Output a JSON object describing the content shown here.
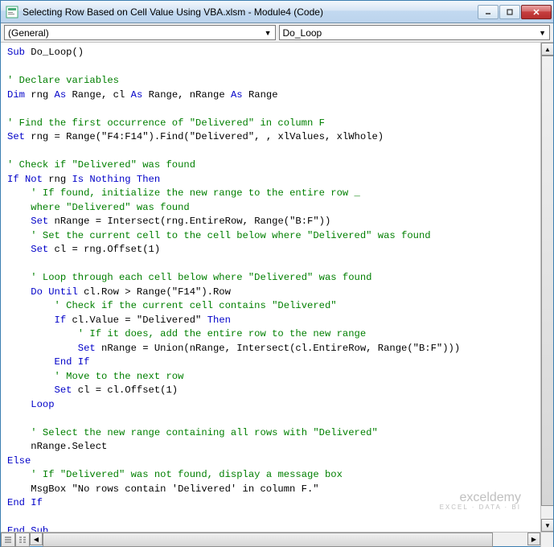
{
  "window": {
    "title": "Selecting Row Based on Cell Value Using VBA.xlsm - Module4 (Code)"
  },
  "dropdowns": {
    "left": "(General)",
    "right": "Do_Loop"
  },
  "code": {
    "tokens": [
      [
        {
          "t": "kw",
          "v": "Sub"
        },
        {
          "t": "",
          "v": " Do_Loop()"
        }
      ],
      [],
      [
        {
          "t": "cm",
          "v": "' Declare variables"
        }
      ],
      [
        {
          "t": "kw",
          "v": "Dim"
        },
        {
          "t": "",
          "v": " rng "
        },
        {
          "t": "kw",
          "v": "As"
        },
        {
          "t": "",
          "v": " Range, cl "
        },
        {
          "t": "kw",
          "v": "As"
        },
        {
          "t": "",
          "v": " Range, nRange "
        },
        {
          "t": "kw",
          "v": "As"
        },
        {
          "t": "",
          "v": " Range"
        }
      ],
      [],
      [
        {
          "t": "cm",
          "v": "' Find the first occurrence of \"Delivered\" in column F"
        }
      ],
      [
        {
          "t": "kw",
          "v": "Set"
        },
        {
          "t": "",
          "v": " rng = Range(\"F4:F14\").Find(\"Delivered\", , xlValues, xlWhole)"
        }
      ],
      [],
      [
        {
          "t": "cm",
          "v": "' Check if \"Delivered\" was found"
        }
      ],
      [
        {
          "t": "kw",
          "v": "If Not"
        },
        {
          "t": "",
          "v": " rng "
        },
        {
          "t": "kw",
          "v": "Is Nothing Then"
        }
      ],
      [
        {
          "t": "",
          "v": "    "
        },
        {
          "t": "cm",
          "v": "' If found, initialize the new range to the entire row _"
        }
      ],
      [
        {
          "t": "",
          "v": "    "
        },
        {
          "t": "cm",
          "v": "where \"Delivered\" was found"
        }
      ],
      [
        {
          "t": "",
          "v": "    "
        },
        {
          "t": "kw",
          "v": "Set"
        },
        {
          "t": "",
          "v": " nRange = Intersect(rng.EntireRow, Range(\"B:F\"))"
        }
      ],
      [
        {
          "t": "",
          "v": "    "
        },
        {
          "t": "cm",
          "v": "' Set the current cell to the cell below where \"Delivered\" was found"
        }
      ],
      [
        {
          "t": "",
          "v": "    "
        },
        {
          "t": "kw",
          "v": "Set"
        },
        {
          "t": "",
          "v": " cl = rng.Offset(1)"
        }
      ],
      [],
      [
        {
          "t": "",
          "v": "    "
        },
        {
          "t": "cm",
          "v": "' Loop through each cell below where \"Delivered\" was found"
        }
      ],
      [
        {
          "t": "",
          "v": "    "
        },
        {
          "t": "kw",
          "v": "Do Until"
        },
        {
          "t": "",
          "v": " cl.Row > Range(\"F14\").Row"
        }
      ],
      [
        {
          "t": "",
          "v": "        "
        },
        {
          "t": "cm",
          "v": "' Check if the current cell contains \"Delivered\""
        }
      ],
      [
        {
          "t": "",
          "v": "        "
        },
        {
          "t": "kw",
          "v": "If"
        },
        {
          "t": "",
          "v": " cl.Value = \"Delivered\" "
        },
        {
          "t": "kw",
          "v": "Then"
        }
      ],
      [
        {
          "t": "",
          "v": "            "
        },
        {
          "t": "cm",
          "v": "' If it does, add the entire row to the new range"
        }
      ],
      [
        {
          "t": "",
          "v": "            "
        },
        {
          "t": "kw",
          "v": "Set"
        },
        {
          "t": "",
          "v": " nRange = Union(nRange, Intersect(cl.EntireRow, Range(\"B:F\")))"
        }
      ],
      [
        {
          "t": "",
          "v": "        "
        },
        {
          "t": "kw",
          "v": "End If"
        }
      ],
      [
        {
          "t": "",
          "v": "        "
        },
        {
          "t": "cm",
          "v": "' Move to the next row"
        }
      ],
      [
        {
          "t": "",
          "v": "        "
        },
        {
          "t": "kw",
          "v": "Set"
        },
        {
          "t": "",
          "v": " cl = cl.Offset(1)"
        }
      ],
      [
        {
          "t": "",
          "v": "    "
        },
        {
          "t": "kw",
          "v": "Loop"
        }
      ],
      [],
      [
        {
          "t": "",
          "v": "    "
        },
        {
          "t": "cm",
          "v": "' Select the new range containing all rows with \"Delivered\""
        }
      ],
      [
        {
          "t": "",
          "v": "    nRange.Select"
        }
      ],
      [
        {
          "t": "kw",
          "v": "Else"
        }
      ],
      [
        {
          "t": "",
          "v": "    "
        },
        {
          "t": "cm",
          "v": "' If \"Delivered\" was not found, display a message box"
        }
      ],
      [
        {
          "t": "",
          "v": "    MsgBox \"No rows contain 'Delivered' in column F.\""
        }
      ],
      [
        {
          "t": "kw",
          "v": "End If"
        }
      ],
      [],
      [
        {
          "t": "kw",
          "v": "End Sub"
        }
      ]
    ]
  },
  "watermark": {
    "main": "exceldemy",
    "sub": "EXCEL · DATA · BI"
  },
  "colors": {
    "keyword": "#0000c8",
    "comment": "#007f00",
    "text": "#000000",
    "bg": "#ffffff"
  }
}
